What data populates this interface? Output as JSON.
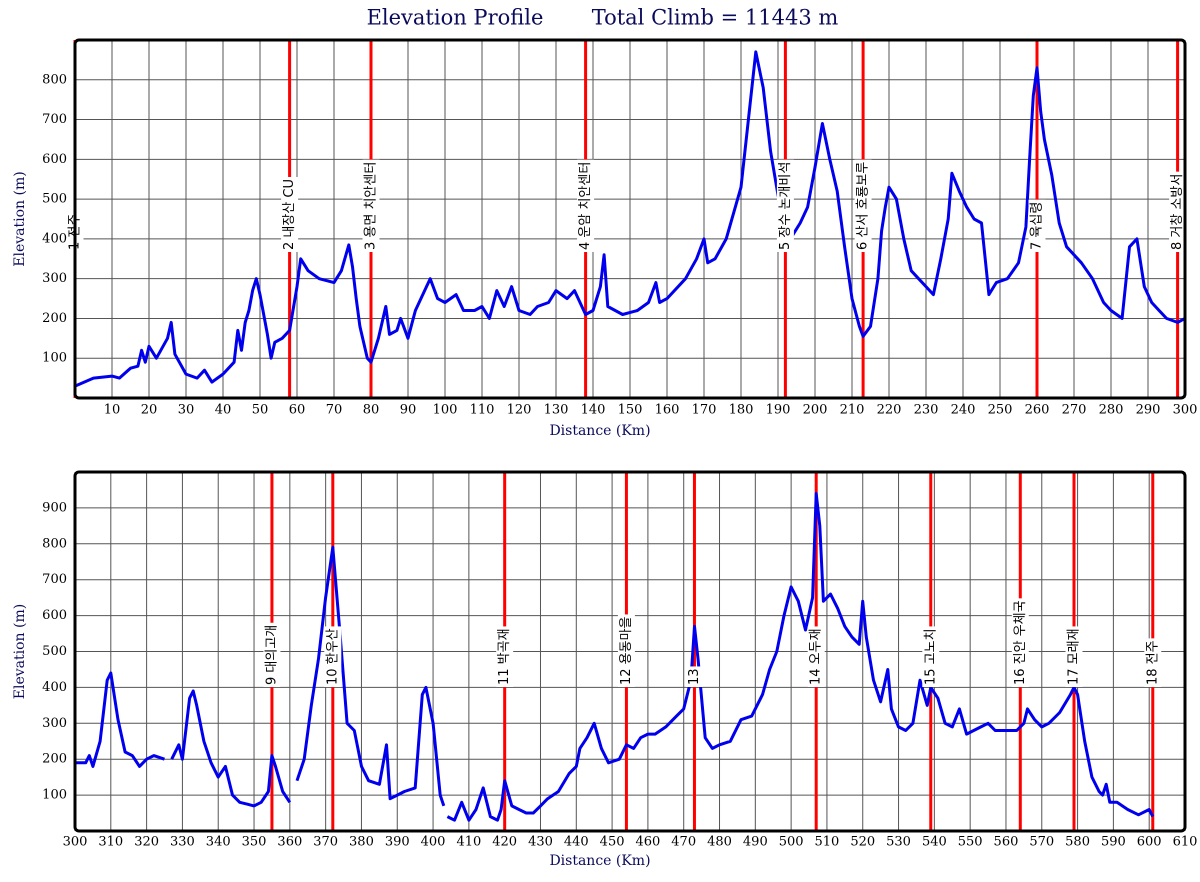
{
  "chart_data": [
    {
      "type": "line",
      "title": "Elevation Profile",
      "subtitle": "Total Climb = 11443 m",
      "xlabel": "Distance (Km)",
      "ylabel": "Elevation (m)",
      "color": "#0000ee",
      "marker_color": "#ff0000",
      "grid": true,
      "xlim": [
        0,
        300
      ],
      "ylim": [
        0,
        900
      ],
      "xticks": [
        10,
        20,
        30,
        40,
        50,
        60,
        70,
        80,
        90,
        100,
        110,
        120,
        130,
        140,
        150,
        160,
        170,
        180,
        190,
        200,
        210,
        220,
        230,
        240,
        250,
        260,
        270,
        280,
        290,
        300
      ],
      "yticks": [
        100,
        200,
        300,
        400,
        500,
        600,
        700,
        800
      ],
      "x": [
        0,
        5,
        10,
        12,
        15,
        17,
        18,
        19,
        20,
        22,
        25,
        26,
        27,
        30,
        33,
        35,
        37,
        40,
        43,
        44,
        45,
        46,
        47,
        48,
        49,
        50,
        52,
        53,
        54,
        56,
        58,
        60,
        61,
        63,
        66,
        70,
        72,
        74,
        75,
        76,
        77,
        79,
        80,
        82,
        84,
        85,
        87,
        88,
        90,
        92,
        95,
        96,
        98,
        100,
        103,
        105,
        108,
        110,
        112,
        114,
        116,
        118,
        120,
        123,
        125,
        128,
        130,
        133,
        135,
        138,
        140,
        142,
        143,
        144,
        146,
        148,
        152,
        155,
        157,
        158,
        160,
        165,
        168,
        170,
        171,
        173,
        176,
        180,
        182,
        184,
        186,
        188,
        190,
        192,
        194,
        196,
        198,
        200,
        202,
        204,
        206,
        208,
        210,
        212,
        213,
        215,
        217,
        218,
        219,
        220,
        222,
        224,
        226,
        228,
        230,
        232,
        234,
        236,
        237,
        239,
        241,
        243,
        245,
        247,
        249,
        252,
        255,
        257,
        258,
        259,
        260,
        261,
        262,
        264,
        266,
        268,
        270,
        272,
        275,
        278,
        280,
        283,
        285,
        287,
        289,
        291,
        293,
        295,
        298,
        300
      ],
      "values": [
        30,
        50,
        55,
        50,
        75,
        80,
        120,
        90,
        130,
        100,
        150,
        190,
        110,
        60,
        50,
        70,
        40,
        60,
        90,
        170,
        120,
        190,
        220,
        270,
        300,
        260,
        160,
        100,
        140,
        150,
        170,
        280,
        350,
        320,
        300,
        290,
        320,
        385,
        330,
        250,
        180,
        100,
        90,
        150,
        230,
        160,
        170,
        200,
        150,
        220,
        280,
        300,
        250,
        240,
        260,
        220,
        220,
        230,
        200,
        270,
        230,
        280,
        220,
        210,
        230,
        240,
        270,
        250,
        270,
        210,
        220,
        280,
        360,
        230,
        220,
        210,
        220,
        240,
        290,
        240,
        250,
        300,
        350,
        400,
        340,
        350,
        400,
        530,
        700,
        870,
        780,
        620,
        510,
        430,
        410,
        440,
        480,
        580,
        690,
        600,
        520,
        380,
        250,
        180,
        155,
        180,
        300,
        420,
        480,
        530,
        500,
        400,
        320,
        300,
        280,
        260,
        350,
        450,
        565,
        520,
        480,
        450,
        440,
        260,
        290,
        300,
        340,
        430,
        600,
        760,
        830,
        720,
        650,
        560,
        440,
        380,
        360,
        340,
        300,
        240,
        220,
        200,
        380,
        400,
        280,
        240,
        220,
        200,
        190,
        200
      ],
      "markers": [
        {
          "x": 0,
          "label": "1 전주"
        },
        {
          "x": 58,
          "label": "2 내장산 CU"
        },
        {
          "x": 80,
          "label": "3 용면 치안센터"
        },
        {
          "x": 138,
          "label": "4 운암 치안센터"
        },
        {
          "x": 192,
          "label": "5 장수 논개비석"
        },
        {
          "x": 213,
          "label": "6 산서 호룡보루"
        },
        {
          "x": 260,
          "label": "7 육십령"
        },
        {
          "x": 298,
          "label": "8 거창 소방서"
        }
      ]
    },
    {
      "type": "line",
      "xlabel": "Distance (Km)",
      "ylabel": "Elevation (m)",
      "color": "#0000ee",
      "marker_color": "#ff0000",
      "grid": true,
      "xlim": [
        300,
        610
      ],
      "ylim": [
        0,
        1000
      ],
      "xticks": [
        300,
        310,
        320,
        330,
        340,
        350,
        360,
        370,
        380,
        390,
        400,
        410,
        420,
        430,
        440,
        450,
        460,
        470,
        480,
        490,
        500,
        510,
        520,
        530,
        540,
        550,
        560,
        570,
        580,
        590,
        600,
        610
      ],
      "yticks": [
        100,
        200,
        300,
        400,
        500,
        600,
        700,
        800,
        900
      ],
      "x": [
        300,
        303,
        304,
        305,
        307,
        309,
        310,
        312,
        314,
        316,
        318,
        320,
        322,
        325,
        326,
        327,
        329,
        330,
        332,
        333,
        334,
        336,
        338,
        340,
        342,
        344,
        346,
        348,
        350,
        352,
        354,
        355,
        356,
        358,
        360,
        361,
        362,
        364,
        366,
        368,
        370,
        372,
        374,
        376,
        378,
        380,
        382,
        385,
        387,
        388,
        390,
        392,
        395,
        397,
        398,
        400,
        402,
        403,
        403.5,
        404,
        406,
        408,
        410,
        412,
        414,
        416,
        418,
        419,
        420,
        422,
        424,
        426,
        428,
        430,
        432,
        435,
        438,
        440,
        441,
        443,
        445,
        447,
        449,
        452,
        454,
        456,
        458,
        460,
        462,
        465,
        468,
        470,
        472,
        473,
        474,
        476,
        478,
        480,
        483,
        486,
        489,
        492,
        494,
        496,
        498,
        500,
        502,
        504,
        506,
        507,
        508,
        509,
        511,
        513,
        515,
        517,
        519,
        520,
        521,
        523,
        525,
        527,
        528,
        530,
        532,
        534,
        536,
        538,
        539,
        541,
        543,
        545,
        547,
        549,
        551,
        553,
        555,
        557,
        560,
        563,
        565,
        566,
        568,
        570,
        572,
        575,
        578,
        579,
        580,
        582,
        584,
        586,
        587,
        588,
        589,
        591,
        594,
        597,
        600,
        601
      ],
      "values": [
        190,
        190,
        210,
        180,
        250,
        420,
        440,
        310,
        220,
        210,
        180,
        200,
        210,
        200,
        null,
        200,
        240,
        200,
        370,
        390,
        350,
        250,
        190,
        150,
        180,
        100,
        80,
        75,
        70,
        80,
        110,
        210,
        180,
        110,
        80,
        null,
        140,
        200,
        350,
        480,
        650,
        790,
        550,
        300,
        280,
        180,
        140,
        130,
        240,
        90,
        100,
        110,
        120,
        380,
        400,
        300,
        100,
        70,
        null,
        40,
        30,
        80,
        30,
        60,
        120,
        40,
        30,
        60,
        140,
        70,
        60,
        50,
        50,
        70,
        90,
        110,
        160,
        180,
        230,
        260,
        300,
        230,
        190,
        200,
        240,
        230,
        260,
        270,
        270,
        290,
        320,
        340,
        420,
        570,
        480,
        260,
        230,
        240,
        250,
        310,
        320,
        380,
        450,
        500,
        600,
        680,
        640,
        560,
        650,
        940,
        850,
        640,
        660,
        620,
        570,
        540,
        520,
        640,
        540,
        420,
        360,
        450,
        340,
        290,
        280,
        300,
        420,
        350,
        400,
        370,
        300,
        290,
        340,
        270,
        280,
        290,
        300,
        280,
        280,
        280,
        300,
        340,
        310,
        290,
        300,
        330,
        380,
        400,
        380,
        250,
        150,
        110,
        100,
        130,
        80,
        80,
        60,
        45,
        60,
        40
      ],
      "markers": [
        {
          "x": 355,
          "label": "9 대의고개"
        },
        {
          "x": 372,
          "label": "10 한우산"
        },
        {
          "x": 420,
          "label": "11 박곡재"
        },
        {
          "x": 454,
          "label": "12 용동마을"
        },
        {
          "x": 473,
          "label": "13"
        },
        {
          "x": 507,
          "label": "14 오두재"
        },
        {
          "x": 539,
          "label": "15 고노치"
        },
        {
          "x": 564,
          "label": "16 진안 우체국"
        },
        {
          "x": 579,
          "label": "17 모래재"
        },
        {
          "x": 601,
          "label": "18 전주"
        }
      ]
    }
  ]
}
